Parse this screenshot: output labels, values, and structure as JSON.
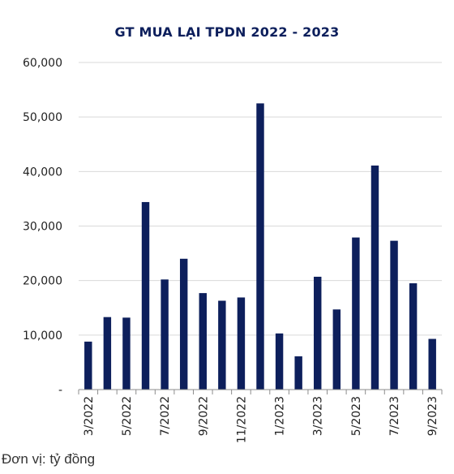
{
  "chart_data": {
    "type": "bar",
    "title": "GT MUA LẠI TPDN 2022 - 2023",
    "unit_note": "Đơn vị: tỷ đồng",
    "categories": [
      "3/2022",
      "4/2022",
      "5/2022",
      "6/2022",
      "7/2022",
      "8/2022",
      "9/2022",
      "10/2022",
      "11/2022",
      "12/2022",
      "1/2023",
      "2/2023",
      "3/2023",
      "4/2023",
      "5/2023",
      "6/2023",
      "7/2023",
      "8/2023",
      "9/2023"
    ],
    "tick_labels": [
      "3/2022",
      "",
      "5/2022",
      "",
      "7/2022",
      "",
      "9/2022",
      "",
      "11/2022",
      "",
      "1/2023",
      "",
      "3/2023",
      "",
      "5/2023",
      "",
      "7/2023",
      "",
      "9/2023"
    ],
    "values": [
      8800,
      13300,
      13200,
      34400,
      20200,
      24000,
      17700,
      16300,
      16900,
      52500,
      10300,
      6100,
      20700,
      14700,
      27900,
      41100,
      27300,
      19500,
      9300
    ],
    "ylim": [
      0,
      60000
    ],
    "yticks": [
      0,
      10000,
      20000,
      30000,
      40000,
      50000,
      60000
    ],
    "ytick_labels": [
      "-",
      "10,000",
      "20,000",
      "30,000",
      "40,000",
      "50,000",
      "60,000"
    ],
    "grid": true,
    "bar_color": "#0d1f5c",
    "grid_color": "#d9d9d9"
  }
}
